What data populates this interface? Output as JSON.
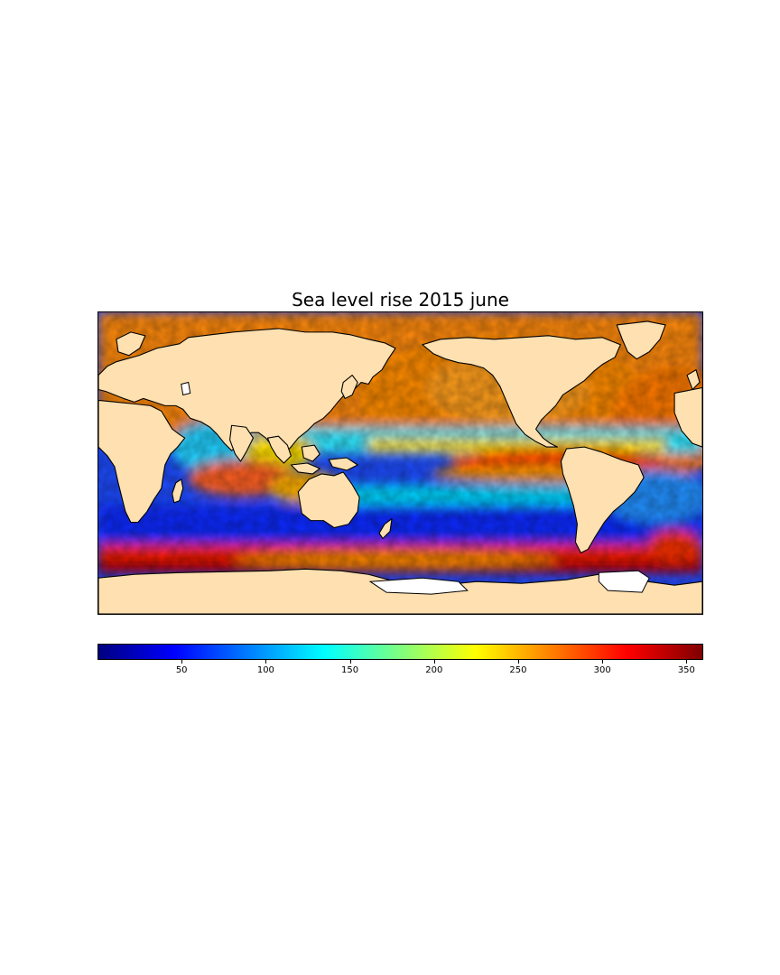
{
  "figure": {
    "title": "Sea level rise 2015 june"
  },
  "colorbar": {
    "min": 0,
    "max": 360,
    "ticks": [
      50,
      100,
      150,
      200,
      250,
      300,
      350
    ],
    "tick_labels": [
      "50",
      "100",
      "150",
      "200",
      "250",
      "300",
      "350"
    ],
    "colormap": [
      "#00007f",
      "#0000ff",
      "#007fff",
      "#00ffff",
      "#7fff7f",
      "#ffff00",
      "#ff7f00",
      "#ff0000",
      "#7f0000"
    ]
  },
  "map": {
    "projection": "cylindrical",
    "land_color": "#ffe0b0",
    "coastline_color": "#000000",
    "lon_range": [
      20,
      380
    ],
    "lat_range": [
      -80,
      80
    ]
  }
}
